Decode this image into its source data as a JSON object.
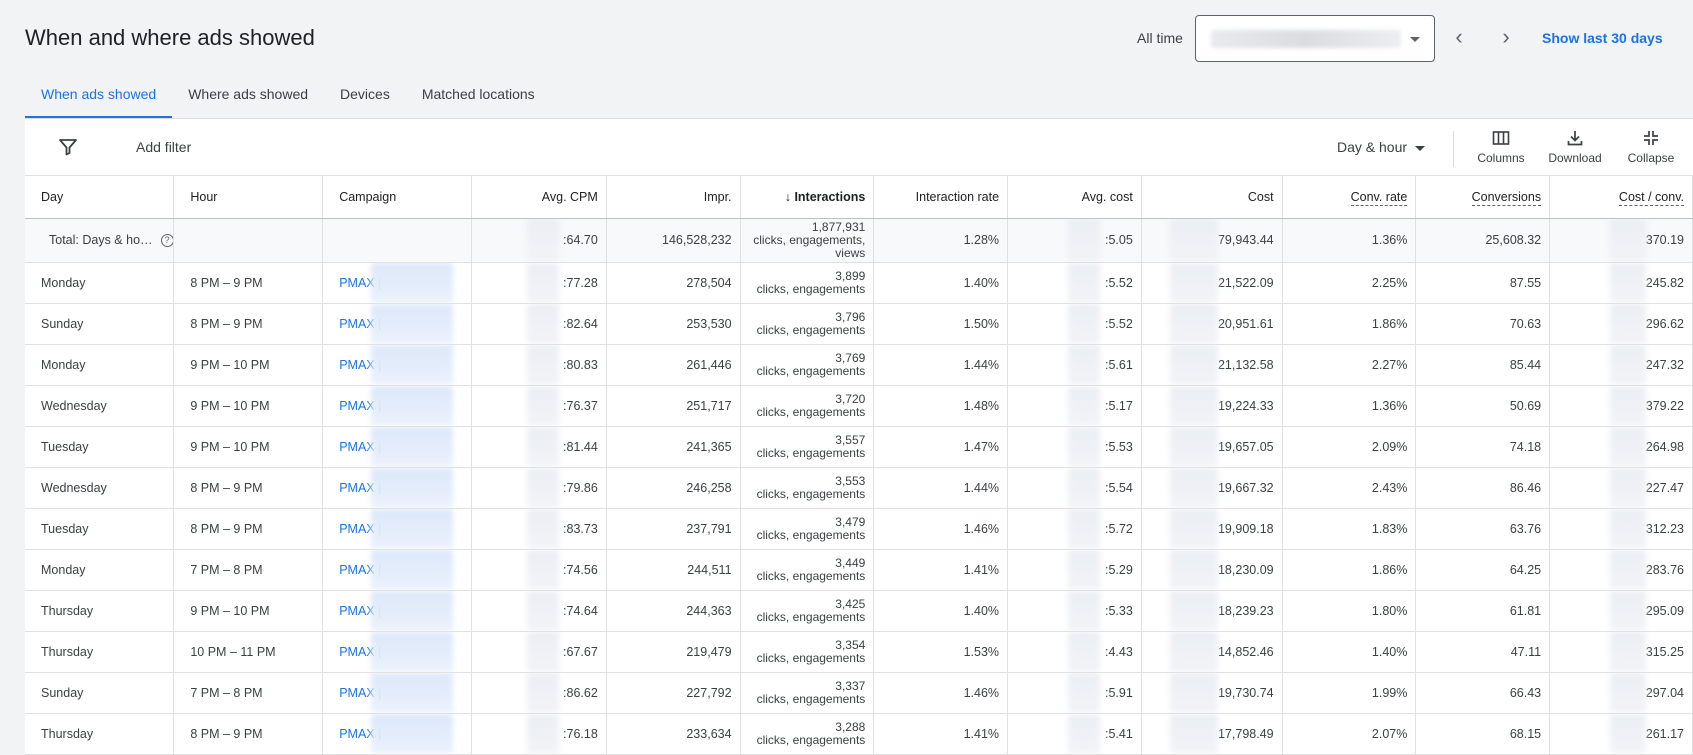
{
  "header": {
    "title": "When and where ads showed",
    "range_label": "All time",
    "show_last": "Show last 30 days"
  },
  "tabs": [
    {
      "label": "When ads showed",
      "active": true
    },
    {
      "label": "Where ads showed",
      "active": false
    },
    {
      "label": "Devices",
      "active": false
    },
    {
      "label": "Matched locations",
      "active": false
    }
  ],
  "toolbar": {
    "add_filter": "Add filter",
    "segment": "Day & hour",
    "columns": "Columns",
    "download": "Download",
    "collapse": "Collapse"
  },
  "columns": [
    "Day",
    "Hour",
    "Campaign",
    "Avg. CPM",
    "Impr.",
    "Interactions",
    "Interaction rate",
    "Avg. cost",
    "Cost",
    "Conv. rate",
    "Conversions",
    "Cost / conv."
  ],
  "total": {
    "label": "Total: Days & ho…",
    "avg_cpm": ":64.70",
    "impr": "146,528,232",
    "interactions": "1,877,931",
    "interactions_sub1": "clicks, engagements,",
    "interactions_sub2": "views",
    "interaction_rate": "1.28%",
    "avg_cost": ":5.05",
    "cost": "79,943.44",
    "conv_rate": "1.36%",
    "conversions": "25,608.32",
    "cost_per_conv": "370.19"
  },
  "rows": [
    {
      "day": "Monday",
      "hour": "8 PM – 9 PM",
      "campaign": "PMAX |",
      "avg_cpm": ":77.28",
      "impr": "278,504",
      "interactions": "3,899",
      "interactions_sub": "clicks, engagements",
      "interaction_rate": "1.40%",
      "avg_cost": ":5.52",
      "cost": "21,522.09",
      "conv_rate": "2.25%",
      "conversions": "87.55",
      "cost_per_conv": "245.82"
    },
    {
      "day": "Sunday",
      "hour": "8 PM – 9 PM",
      "campaign": "PMAX |",
      "avg_cpm": ":82.64",
      "impr": "253,530",
      "interactions": "3,796",
      "interactions_sub": "clicks, engagements",
      "interaction_rate": "1.50%",
      "avg_cost": ":5.52",
      "cost": "20,951.61",
      "conv_rate": "1.86%",
      "conversions": "70.63",
      "cost_per_conv": "296.62"
    },
    {
      "day": "Monday",
      "hour": "9 PM – 10 PM",
      "campaign": "PMAX |",
      "avg_cpm": ":80.83",
      "impr": "261,446",
      "interactions": "3,769",
      "interactions_sub": "clicks, engagements",
      "interaction_rate": "1.44%",
      "avg_cost": ":5.61",
      "cost": "21,132.58",
      "conv_rate": "2.27%",
      "conversions": "85.44",
      "cost_per_conv": "247.32"
    },
    {
      "day": "Wednesday",
      "hour": "9 PM – 10 PM",
      "campaign": "PMAX |",
      "avg_cpm": ":76.37",
      "impr": "251,717",
      "interactions": "3,720",
      "interactions_sub": "clicks, engagements",
      "interaction_rate": "1.48%",
      "avg_cost": ":5.17",
      "cost": "19,224.33",
      "conv_rate": "1.36%",
      "conversions": "50.69",
      "cost_per_conv": "379.22"
    },
    {
      "day": "Tuesday",
      "hour": "9 PM – 10 PM",
      "campaign": "PMAX |",
      "avg_cpm": ":81.44",
      "impr": "241,365",
      "interactions": "3,557",
      "interactions_sub": "clicks, engagements",
      "interaction_rate": "1.47%",
      "avg_cost": ":5.53",
      "cost": "19,657.05",
      "conv_rate": "2.09%",
      "conversions": "74.18",
      "cost_per_conv": "264.98"
    },
    {
      "day": "Wednesday",
      "hour": "8 PM – 9 PM",
      "campaign": "PMAX |",
      "avg_cpm": ":79.86",
      "impr": "246,258",
      "interactions": "3,553",
      "interactions_sub": "clicks, engagements",
      "interaction_rate": "1.44%",
      "avg_cost": ":5.54",
      "cost": "19,667.32",
      "conv_rate": "2.43%",
      "conversions": "86.46",
      "cost_per_conv": "227.47"
    },
    {
      "day": "Tuesday",
      "hour": "8 PM – 9 PM",
      "campaign": "PMAX |",
      "avg_cpm": ":83.73",
      "impr": "237,791",
      "interactions": "3,479",
      "interactions_sub": "clicks, engagements",
      "interaction_rate": "1.46%",
      "avg_cost": ":5.72",
      "cost": "19,909.18",
      "conv_rate": "1.83%",
      "conversions": "63.76",
      "cost_per_conv": "312.23"
    },
    {
      "day": "Monday",
      "hour": "7 PM – 8 PM",
      "campaign": "PMAX |",
      "avg_cpm": ":74.56",
      "impr": "244,511",
      "interactions": "3,449",
      "interactions_sub": "clicks, engagements",
      "interaction_rate": "1.41%",
      "avg_cost": ":5.29",
      "cost": "18,230.09",
      "conv_rate": "1.86%",
      "conversions": "64.25",
      "cost_per_conv": "283.76"
    },
    {
      "day": "Thursday",
      "hour": "9 PM – 10 PM",
      "campaign": "PMAX |",
      "avg_cpm": ":74.64",
      "impr": "244,363",
      "interactions": "3,425",
      "interactions_sub": "clicks, engagements",
      "interaction_rate": "1.40%",
      "avg_cost": ":5.33",
      "cost": "18,239.23",
      "conv_rate": "1.80%",
      "conversions": "61.81",
      "cost_per_conv": "295.09"
    },
    {
      "day": "Thursday",
      "hour": "10 PM – 11 PM",
      "campaign": "PMAX |",
      "avg_cpm": ":67.67",
      "impr": "219,479",
      "interactions": "3,354",
      "interactions_sub": "clicks, engagements",
      "interaction_rate": "1.53%",
      "avg_cost": ":4.43",
      "cost": "14,852.46",
      "conv_rate": "1.40%",
      "conversions": "47.11",
      "cost_per_conv": "315.25"
    },
    {
      "day": "Sunday",
      "hour": "7 PM – 8 PM",
      "campaign": "PMAX |",
      "avg_cpm": ":86.62",
      "impr": "227,792",
      "interactions": "3,337",
      "interactions_sub": "clicks, engagements",
      "interaction_rate": "1.46%",
      "avg_cost": ":5.91",
      "cost": "19,730.74",
      "conv_rate": "1.99%",
      "conversions": "66.43",
      "cost_per_conv": "297.04"
    },
    {
      "day": "Thursday",
      "hour": "8 PM – 9 PM",
      "campaign": "PMAX |",
      "avg_cpm": ":76.18",
      "impr": "233,634",
      "interactions": "3,288",
      "interactions_sub": "clicks, engagements",
      "interaction_rate": "1.41%",
      "avg_cost": ":5.41",
      "cost": "17,798.49",
      "conv_rate": "2.07%",
      "conversions": "68.15",
      "cost_per_conv": "261.17"
    }
  ]
}
